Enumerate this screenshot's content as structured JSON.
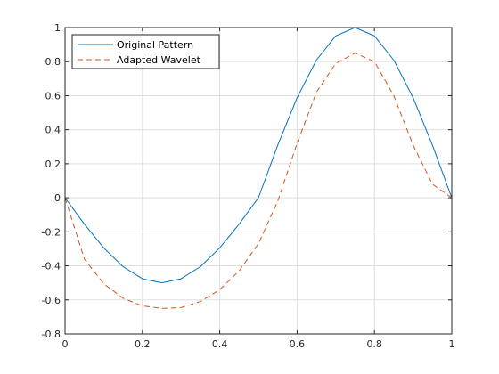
{
  "chart_data": {
    "type": "line",
    "title": "",
    "xlabel": "",
    "ylabel": "",
    "xlim": [
      0,
      1
    ],
    "ylim": [
      -0.8,
      1
    ],
    "grid": true,
    "legend_placement": "top-left",
    "x_ticks": [
      0,
      0.2,
      0.4,
      0.6,
      0.8,
      1
    ],
    "x_tick_labels": [
      "0",
      "0.2",
      "0.4",
      "0.6",
      "0.8",
      "1"
    ],
    "y_ticks": [
      -0.8,
      -0.6,
      -0.4,
      -0.2,
      0,
      0.2,
      0.4,
      0.6,
      0.8,
      1
    ],
    "y_tick_labels": [
      "-0.8",
      "-0.6",
      "-0.4",
      "-0.2",
      "0",
      "0.2",
      "0.4",
      "0.6",
      "0.8",
      "1"
    ],
    "x": [
      0,
      0.05,
      0.1,
      0.15,
      0.2,
      0.25,
      0.3,
      0.35,
      0.4,
      0.45,
      0.5,
      0.55,
      0.6,
      0.65,
      0.7,
      0.75,
      0.8,
      0.85,
      0.9,
      0.95,
      1
    ],
    "series": [
      {
        "name": "Original Pattern",
        "color": "#0072BD",
        "style": "solid",
        "values": [
          0,
          -0.155,
          -0.294,
          -0.405,
          -0.476,
          -0.5,
          -0.476,
          -0.405,
          -0.294,
          -0.155,
          0,
          0.309,
          0.588,
          0.809,
          0.951,
          1,
          0.951,
          0.809,
          0.588,
          0.309,
          0
        ]
      },
      {
        "name": "Adapted Wavelet",
        "color": "#D95319",
        "style": "dashed",
        "values": [
          0,
          -0.36,
          -0.505,
          -0.59,
          -0.635,
          -0.65,
          -0.645,
          -0.61,
          -0.54,
          -0.43,
          -0.27,
          -0.02,
          0.32,
          0.62,
          0.79,
          0.85,
          0.8,
          0.6,
          0.31,
          0.08,
          0
        ]
      }
    ]
  }
}
